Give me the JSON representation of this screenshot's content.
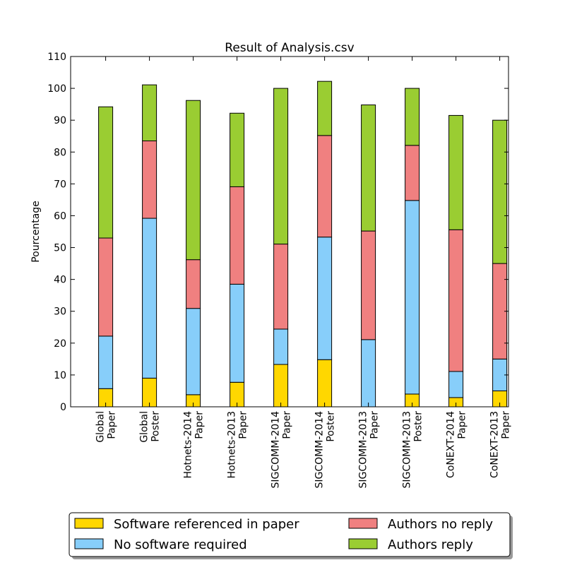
{
  "chart_data": {
    "type": "bar",
    "stacked": true,
    "title": "Result of Analysis.csv",
    "xlabel": "",
    "ylabel": "Pourcentage",
    "ylim": [
      0,
      110
    ],
    "yticks": [
      0,
      10,
      20,
      30,
      40,
      50,
      60,
      70,
      80,
      90,
      100,
      110
    ],
    "categories": [
      [
        "Global",
        "Paper"
      ],
      [
        "Global",
        "Poster"
      ],
      [
        "Hotnets-2014",
        "Paper"
      ],
      [
        "Hotnets-2013",
        "Paper"
      ],
      [
        "SIGCOMM-2014",
        "Paper"
      ],
      [
        "SIGCOMM-2014",
        "Poster"
      ],
      [
        "SIGCOMM-2013",
        "Paper"
      ],
      [
        "SIGCOMM-2013",
        "Poster"
      ],
      [
        "CoNEXT-2014",
        "Paper"
      ],
      [
        "CoNEXT-2013",
        "Paper"
      ]
    ],
    "series": [
      {
        "name": "Software referenced in paper",
        "color": "#ffd700",
        "values": [
          5.7,
          9,
          3.8,
          7.7,
          13.3,
          14.8,
          0,
          4,
          2.9,
          5
        ]
      },
      {
        "name": "No software required",
        "color": "#87cefa",
        "values": [
          16.5,
          50.2,
          27.1,
          30.8,
          11.1,
          38.5,
          21.1,
          60.8,
          8.2,
          10
        ]
      },
      {
        "name": "Authors no reply",
        "color": "#f08080",
        "values": [
          30.8,
          24.3,
          15.3,
          30.6,
          26.7,
          31.9,
          34.1,
          17.3,
          44.5,
          30
        ]
      },
      {
        "name": "Authors reply",
        "color": "#9acd32",
        "values": [
          41.2,
          17.6,
          50,
          23.1,
          48.9,
          17.0,
          39.6,
          17.9,
          35.9,
          45
        ]
      }
    ],
    "legend": {
      "position": "bottom",
      "columns": 2
    },
    "grid": false
  }
}
